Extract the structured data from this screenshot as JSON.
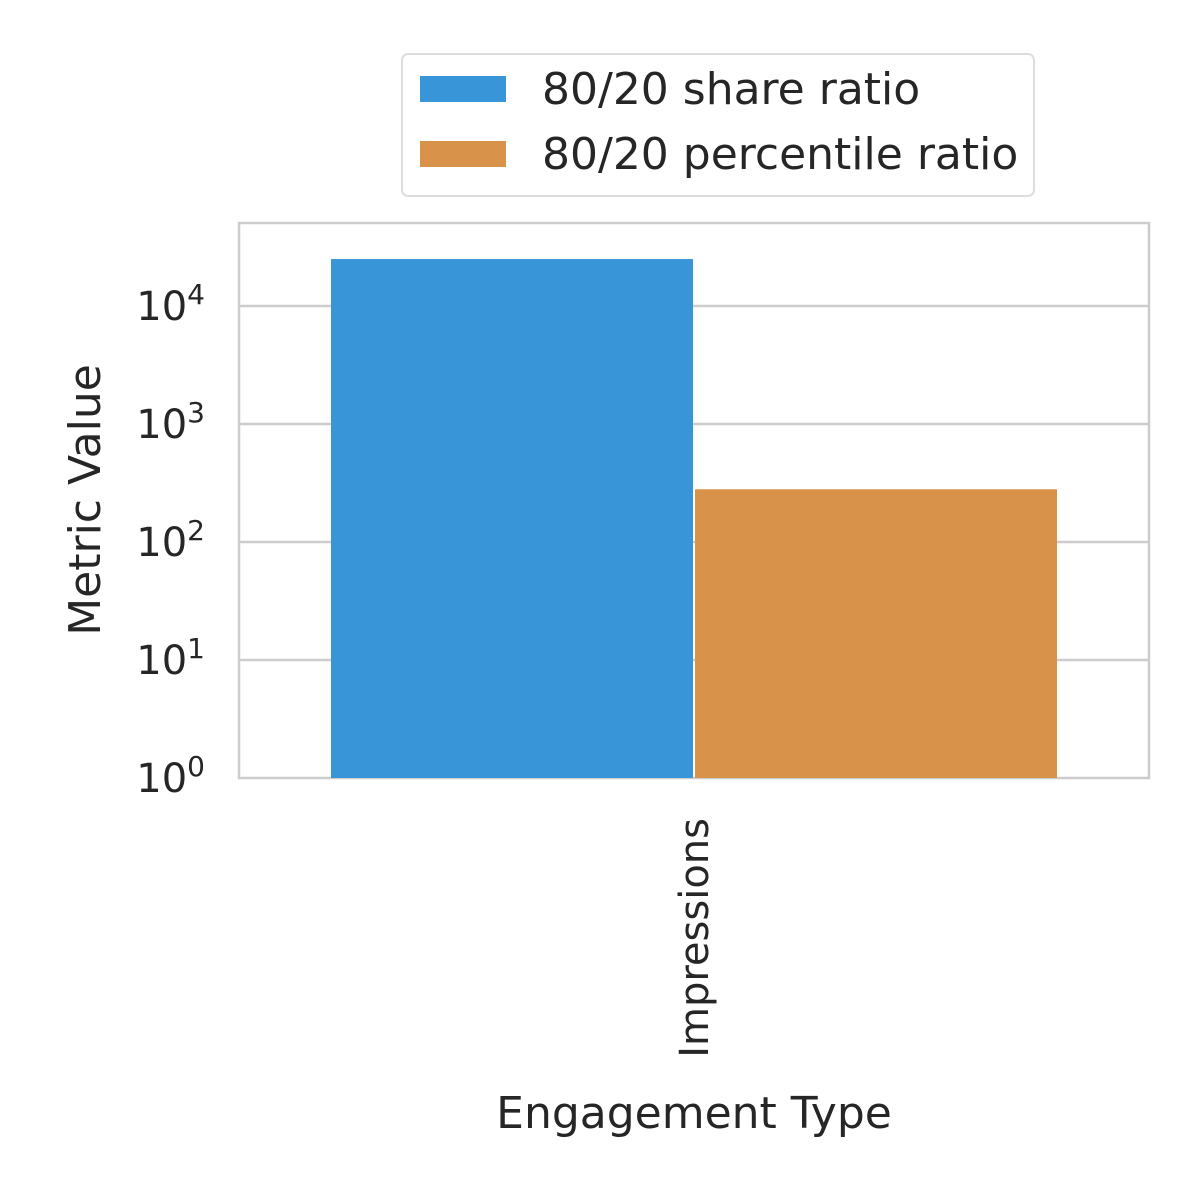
{
  "chart_data": {
    "type": "bar",
    "title": "",
    "xlabel": "Engagement Type",
    "ylabel": "Metric Value",
    "categories": [
      "Impressions"
    ],
    "series": [
      {
        "name": "80/20 share ratio",
        "values": [
          25000
        ],
        "color": "#3795d8"
      },
      {
        "name": "80/20 percentile ratio",
        "values": [
          280
        ],
        "color": "#d8924a"
      }
    ],
    "yscale": "log",
    "ylim": [
      1,
      50000
    ],
    "yticks": [
      {
        "base": "10",
        "exp": "0",
        "value": 1
      },
      {
        "base": "10",
        "exp": "1",
        "value": 10
      },
      {
        "base": "10",
        "exp": "2",
        "value": 100
      },
      {
        "base": "10",
        "exp": "3",
        "value": 1000
      },
      {
        "base": "10",
        "exp": "4",
        "value": 10000
      }
    ],
    "grid": true,
    "legend_position": "top"
  }
}
